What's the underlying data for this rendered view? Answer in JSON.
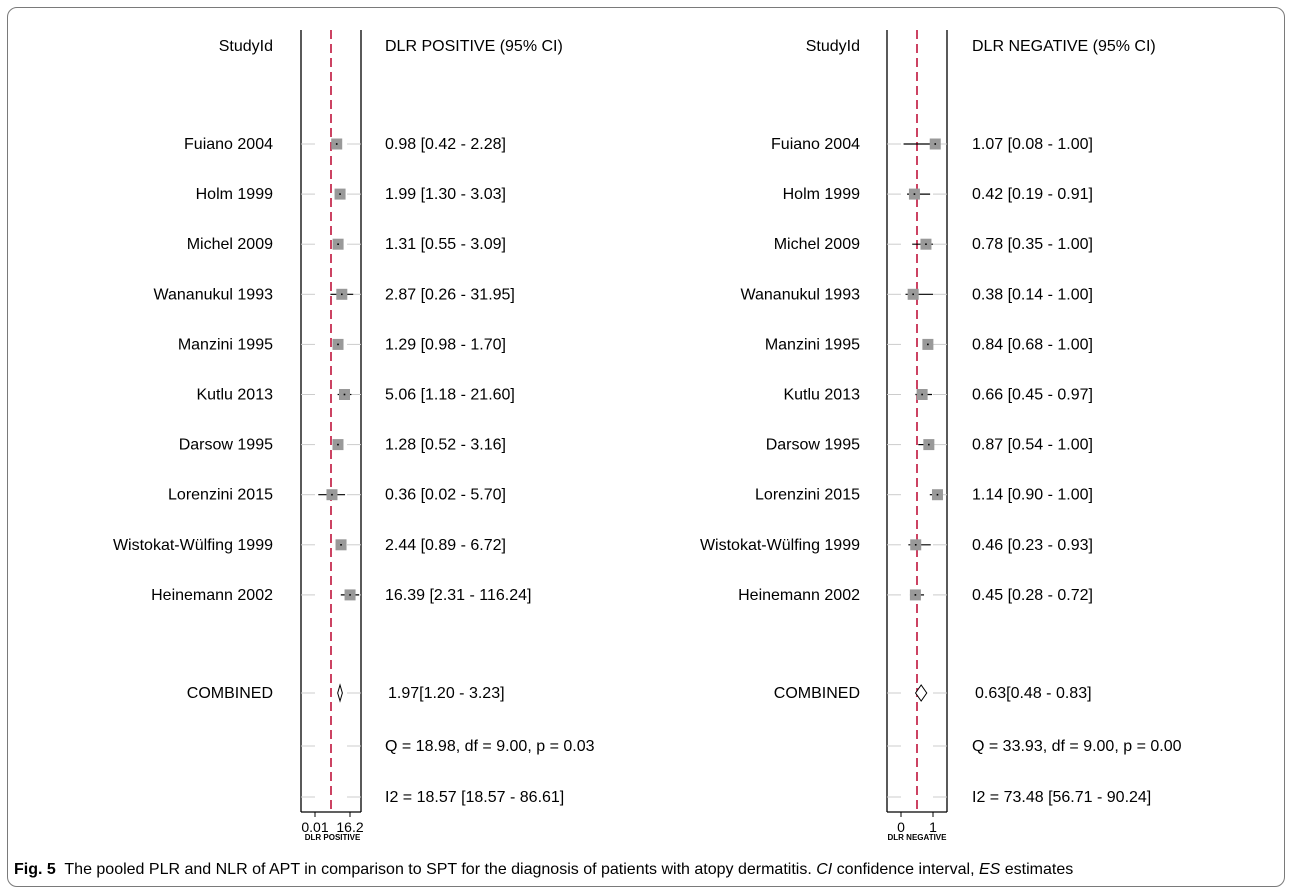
{
  "caption": {
    "figure_label": "Fig. 5",
    "text_a": "The pooled PLR and NLR of APT in comparison to SPT for the diagnosis of patients with atopy dermatitis.",
    "ci_abbrev": "CI",
    "ci_text": "confidence interval,",
    "es_abbrev": "ES",
    "es_text": "estimates"
  },
  "chart_data": [
    {
      "type": "forest",
      "study_header": "StudyId",
      "value_header": "DLR POSITIVE (95% CI)",
      "xlabel": "DLR POSITIVE",
      "x_ticks": [
        "0.01",
        "16.2"
      ],
      "reference_value": 1,
      "studies": [
        {
          "label": "Fuiano  2004",
          "estimate": 0.98,
          "lower": 0.42,
          "upper": 2.28,
          "text": "0.98 [0.42 - 2.28]"
        },
        {
          "label": "Holm  1999",
          "estimate": 1.99,
          "lower": 1.3,
          "upper": 3.03,
          "text": "1.99 [1.30 - 3.03]"
        },
        {
          "label": "Michel  2009",
          "estimate": 1.31,
          "lower": 0.55,
          "upper": 3.09,
          "text": "1.31 [0.55 - 3.09]"
        },
        {
          "label": "Wananukul  1993",
          "estimate": 2.87,
          "lower": 0.26,
          "upper": 31.95,
          "text": "2.87 [0.26 - 31.95]"
        },
        {
          "label": "Manzini  1995",
          "estimate": 1.29,
          "lower": 0.98,
          "upper": 1.7,
          "text": "1.29 [0.98 - 1.70]"
        },
        {
          "label": "Kutlu  2013",
          "estimate": 5.06,
          "lower": 1.18,
          "upper": 21.6,
          "text": "5.06 [1.18 - 21.60]"
        },
        {
          "label": "Darsow  1995",
          "estimate": 1.28,
          "lower": 0.52,
          "upper": 3.16,
          "text": "1.28 [0.52 - 3.16]"
        },
        {
          "label": "Lorenzini  2015",
          "estimate": 0.36,
          "lower": 0.02,
          "upper": 5.7,
          "text": "0.36 [0.02 - 5.70]"
        },
        {
          "label": "Wistokat-Wülfing  1999",
          "estimate": 2.44,
          "lower": 0.89,
          "upper": 6.72,
          "text": "2.44 [0.89 - 6.72]"
        },
        {
          "label": "Heinemann  2002",
          "estimate": 16.39,
          "lower": 2.31,
          "upper": 116.24,
          "text": "16.39 [2.31 - 116.24]"
        }
      ],
      "combined": {
        "label": "COMBINED",
        "estimate": 1.97,
        "lower": 1.2,
        "upper": 3.23,
        "text": "1.97[1.20 - 3.23]"
      },
      "heterogeneity": [
        "Q = 18.98, df = 9.00, p =  0.03",
        "I2 = 18.57 [18.57 - 86.61]"
      ]
    },
    {
      "type": "forest",
      "study_header": "StudyId",
      "value_header": "DLR NEGATIVE (95% CI)",
      "xlabel": "DLR NEGATIVE",
      "x_ticks": [
        "0",
        "1"
      ],
      "reference_value": 0.63,
      "studies": [
        {
          "label": "Fuiano  2004",
          "estimate": 1.07,
          "lower": 0.08,
          "upper": 1.0,
          "text": "1.07 [0.08 - 1.00]"
        },
        {
          "label": "Holm  1999",
          "estimate": 0.42,
          "lower": 0.19,
          "upper": 0.91,
          "text": "0.42 [0.19 - 0.91]"
        },
        {
          "label": "Michel  2009",
          "estimate": 0.78,
          "lower": 0.35,
          "upper": 1.0,
          "text": "0.78 [0.35 - 1.00]"
        },
        {
          "label": "Wananukul  1993",
          "estimate": 0.38,
          "lower": 0.14,
          "upper": 1.0,
          "text": "0.38 [0.14 - 1.00]"
        },
        {
          "label": "Manzini  1995",
          "estimate": 0.84,
          "lower": 0.68,
          "upper": 1.0,
          "text": "0.84 [0.68 - 1.00]"
        },
        {
          "label": "Kutlu  2013",
          "estimate": 0.66,
          "lower": 0.45,
          "upper": 0.97,
          "text": "0.66 [0.45 - 0.97]"
        },
        {
          "label": "Darsow  1995",
          "estimate": 0.87,
          "lower": 0.54,
          "upper": 1.0,
          "text": "0.87 [0.54 - 1.00]"
        },
        {
          "label": "Lorenzini  2015",
          "estimate": 1.14,
          "lower": 0.9,
          "upper": 1.0,
          "text": "1.14 [0.90 - 1.00]"
        },
        {
          "label": "Wistokat-Wülfing  1999",
          "estimate": 0.46,
          "lower": 0.23,
          "upper": 0.93,
          "text": "0.46 [0.23 - 0.93]"
        },
        {
          "label": "Heinemann  2002",
          "estimate": 0.45,
          "lower": 0.28,
          "upper": 0.72,
          "text": "0.45 [0.28 - 0.72]"
        }
      ],
      "combined": {
        "label": "COMBINED",
        "estimate": 0.63,
        "lower": 0.48,
        "upper": 0.83,
        "text": "0.63[0.48 - 0.83]"
      },
      "heterogeneity": [
        "Q = 33.93, df = 9.00, p =  0.00",
        "I2 = 73.48 [56.71 - 90.24]"
      ]
    }
  ],
  "colors": {
    "reference_line": "#c0143c",
    "marker_box": "#999999",
    "frame": "#000000",
    "row_tick": "#cccccc"
  }
}
